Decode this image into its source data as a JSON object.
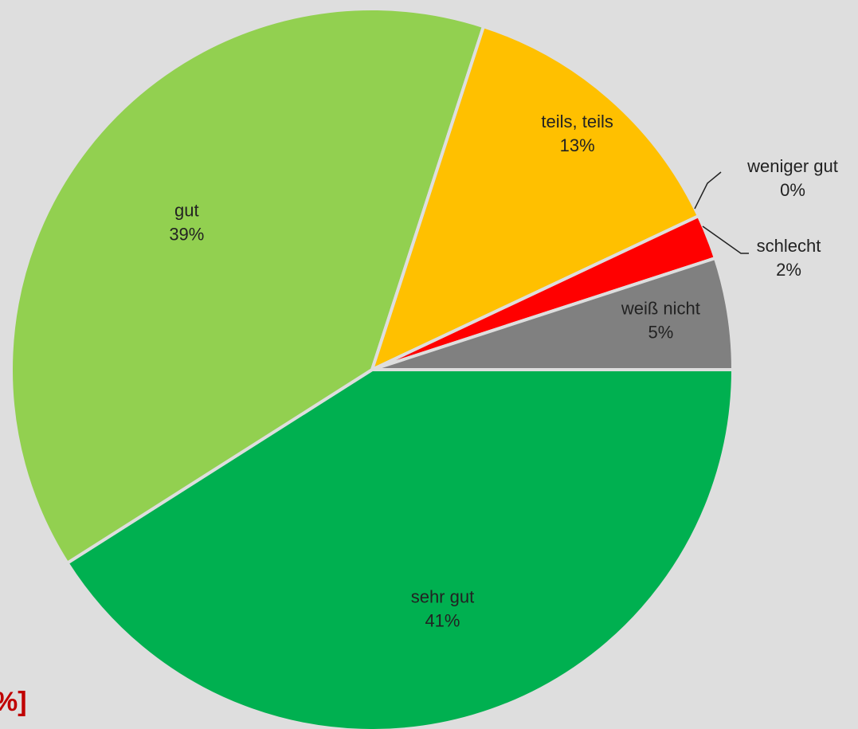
{
  "chart_data": {
    "type": "pie",
    "annotation": "%]",
    "categories": [
      "sehr gut",
      "gut",
      "teils, teils",
      "weniger gut",
      "schlecht",
      "weiß nicht"
    ],
    "values": [
      41,
      39,
      13,
      0,
      2,
      5
    ],
    "value_labels": [
      "41%",
      "39%",
      "13%",
      "0%",
      "2%",
      "5%"
    ],
    "colors": [
      "#00b050",
      "#92d050",
      "#ffc000",
      "#ff9900",
      "#ff0000",
      "#808080"
    ]
  }
}
